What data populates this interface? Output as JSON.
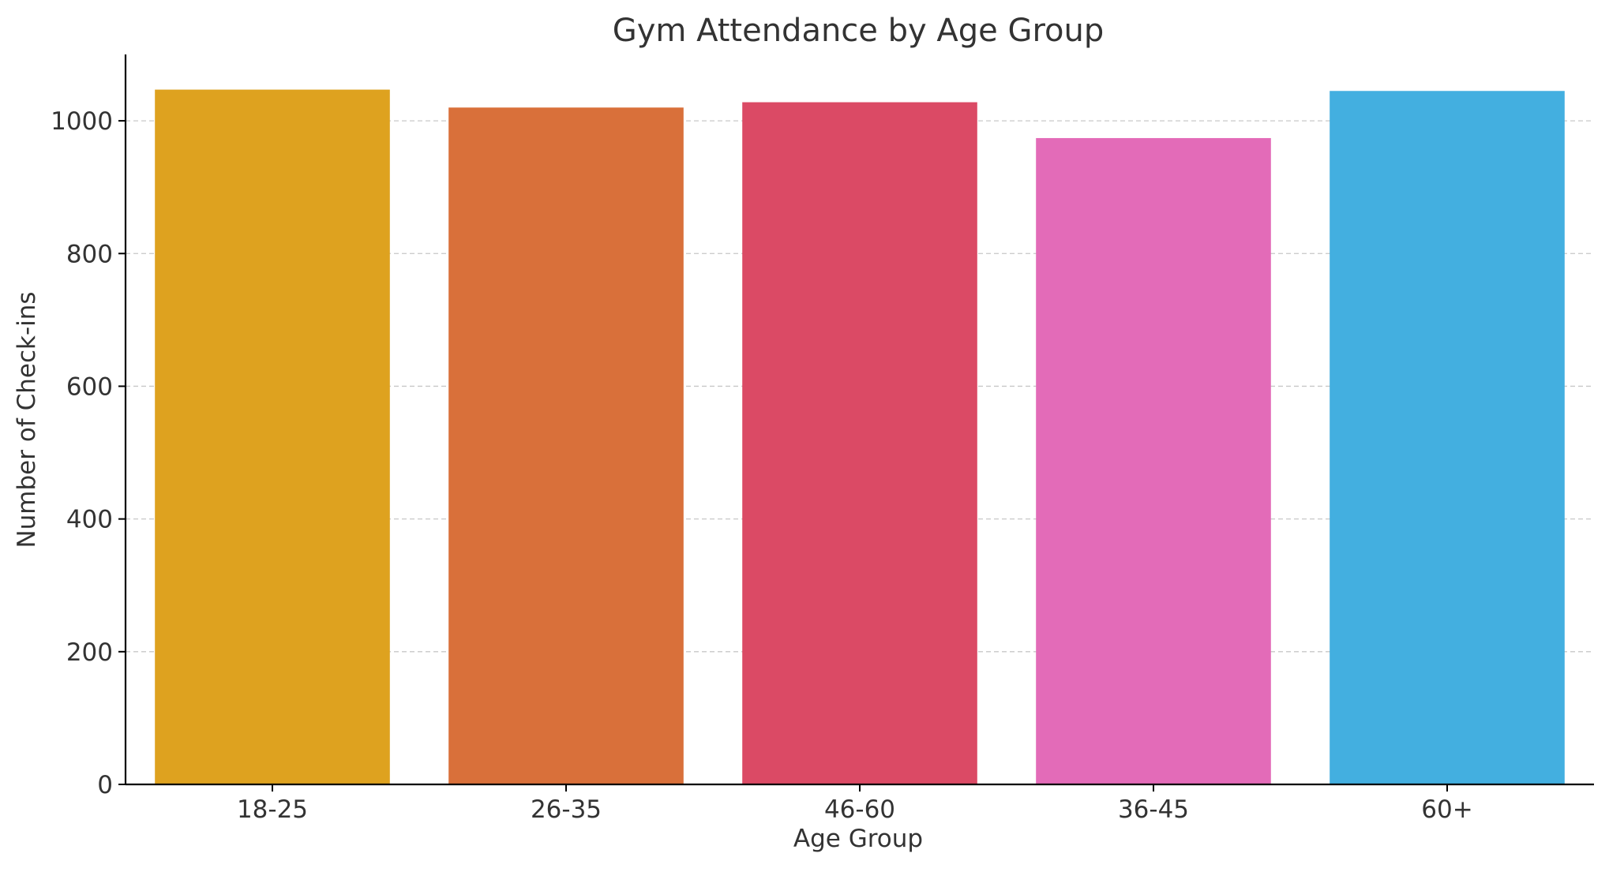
{
  "chart_data": {
    "type": "bar",
    "title": "Gym Attendance by Age Group",
    "xlabel": "Age Group",
    "ylabel": "Number of Check-ins",
    "categories": [
      "18-25",
      "26-35",
      "46-60",
      "36-45",
      "60+"
    ],
    "values": [
      1047,
      1020,
      1028,
      974,
      1045
    ],
    "colors": [
      "#DEA21F",
      "#D9703A",
      "#DB4A65",
      "#E36BB8",
      "#43AFE0"
    ],
    "ylim": [
      0,
      1100
    ],
    "yticks": [
      0,
      200,
      400,
      600,
      800,
      1000
    ],
    "grid": "horizontal dashed",
    "legend": "none"
  }
}
